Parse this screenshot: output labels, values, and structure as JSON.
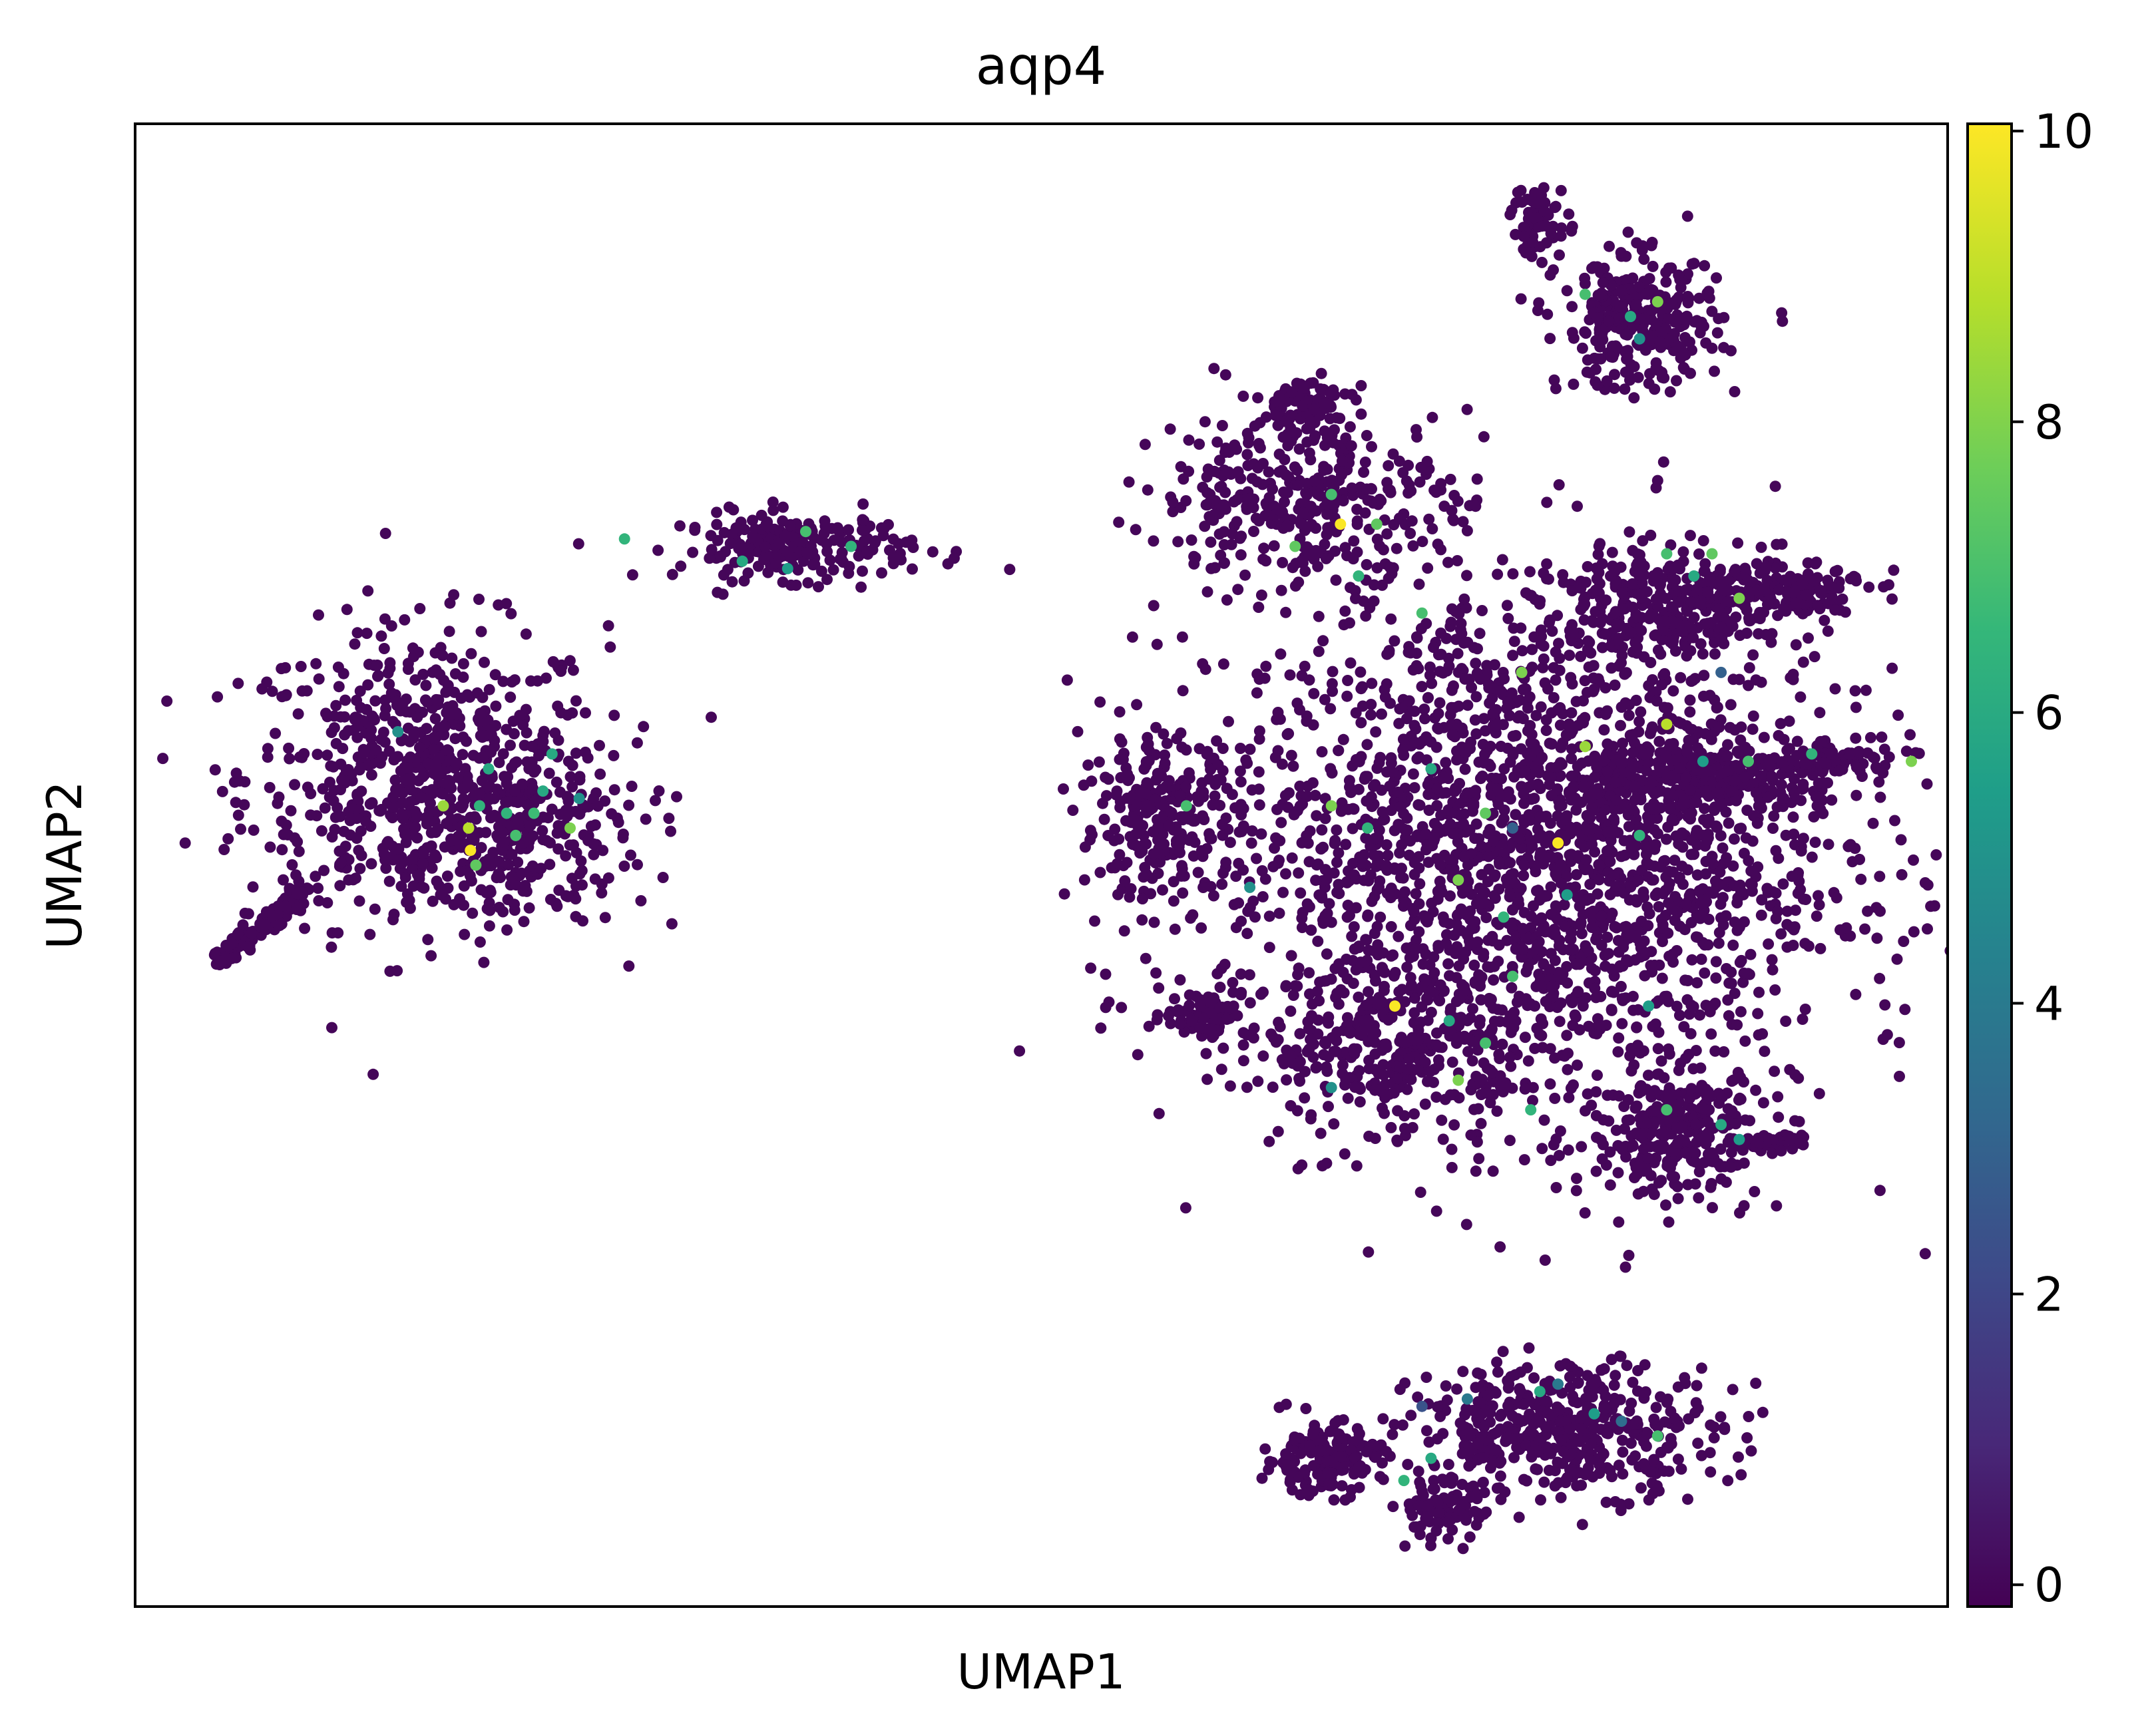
{
  "chart_data": {
    "type": "scatter",
    "title": "aqp4",
    "xlabel": "UMAP1",
    "ylabel": "UMAP2",
    "xlim": [
      0,
      100
    ],
    "ylim": [
      0,
      100
    ],
    "x_ticks_shown": false,
    "y_ticks_shown": false,
    "grid": false,
    "colormap": "viridis",
    "colorbar": {
      "min": -0.15,
      "max": 10.05,
      "ticks": [
        0,
        2,
        4,
        6,
        8,
        10
      ],
      "tick_labels": [
        "0",
        "2",
        "4",
        "6",
        "8",
        "10"
      ]
    },
    "colors": {
      "low": "#440154",
      "mid": "#21918c",
      "high": "#fde725",
      "axes": "#000000"
    },
    "clusters": [
      {
        "name": "C1",
        "shape": "blob",
        "cx": 16,
        "cy": 56,
        "sx": 5.0,
        "sy": 5.0,
        "n": 650
      },
      {
        "name": "C1b",
        "shape": "blob",
        "cx": 20,
        "cy": 52,
        "sx": 4.0,
        "sy": 3.0,
        "n": 250
      },
      {
        "name": "C1-tail",
        "shape": "line",
        "x0": 4.5,
        "y0": 43.5,
        "x1": 9.5,
        "y1": 48.5,
        "w": 0.7,
        "n": 120
      },
      {
        "name": "C2",
        "shape": "blob",
        "cx": 36.5,
        "cy": 71.5,
        "sx": 3.2,
        "sy": 1.1,
        "n": 220
      },
      {
        "name": "C3",
        "shape": "blob",
        "cx": 77,
        "cy": 51,
        "sx": 8.5,
        "sy": 9.0,
        "n": 2400
      },
      {
        "name": "C3-top",
        "shape": "blob",
        "cx": 64.5,
        "cy": 75,
        "sx": 4.0,
        "sy": 2.8,
        "n": 350
      },
      {
        "name": "C3-topsmall",
        "shape": "blob",
        "cx": 64.5,
        "cy": 81,
        "sx": 1.3,
        "sy": 1.0,
        "n": 80
      },
      {
        "name": "C3-left",
        "shape": "blob",
        "cx": 56.5,
        "cy": 53,
        "sx": 2.2,
        "sy": 2.8,
        "n": 260
      },
      {
        "name": "C3-bottomleft",
        "shape": "blob",
        "cx": 59,
        "cy": 40,
        "sx": 1.2,
        "sy": 0.8,
        "n": 70
      },
      {
        "name": "C3-bottom",
        "shape": "blob",
        "cx": 69.5,
        "cy": 37.5,
        "sx": 3.5,
        "sy": 2.5,
        "n": 260
      },
      {
        "name": "C4",
        "shape": "blob",
        "cx": 83,
        "cy": 86.5,
        "sx": 2.2,
        "sy": 2.2,
        "n": 300
      },
      {
        "name": "C4-tip",
        "shape": "blob",
        "cx": 77.5,
        "cy": 93.5,
        "sx": 0.8,
        "sy": 1.3,
        "n": 60
      },
      {
        "name": "C5",
        "shape": "blob",
        "cx": 85,
        "cy": 67.5,
        "sx": 3.8,
        "sy": 1.7,
        "n": 330
      },
      {
        "name": "C5-right",
        "shape": "blob",
        "cx": 91.5,
        "cy": 69,
        "sx": 2.0,
        "sy": 0.9,
        "n": 90
      },
      {
        "name": "C6",
        "shape": "blob",
        "cx": 86.5,
        "cy": 56,
        "sx": 3.4,
        "sy": 1.4,
        "n": 280
      },
      {
        "name": "C6-right",
        "shape": "blob",
        "cx": 94,
        "cy": 57,
        "sx": 1.6,
        "sy": 0.6,
        "n": 60
      },
      {
        "name": "C7",
        "shape": "blob",
        "cx": 85,
        "cy": 32,
        "sx": 2.4,
        "sy": 2.2,
        "n": 270
      },
      {
        "name": "C7-tail",
        "shape": "line",
        "x0": 88,
        "y0": 31,
        "x1": 92,
        "y1": 31.5,
        "w": 0.5,
        "n": 50
      },
      {
        "name": "C8",
        "shape": "blob",
        "cx": 79,
        "cy": 12,
        "sx": 4.2,
        "sy": 2.2,
        "n": 450
      },
      {
        "name": "C8-left",
        "shape": "blob",
        "cx": 65.5,
        "cy": 10,
        "sx": 1.6,
        "sy": 1.2,
        "n": 170
      },
      {
        "name": "C8-bottom",
        "shape": "blob",
        "cx": 72,
        "cy": 6.5,
        "sx": 1.2,
        "sy": 1.0,
        "n": 90
      }
    ],
    "highlighted_points": [
      {
        "x": 20.5,
        "y": 53.5,
        "v": 6.5
      },
      {
        "x": 22.5,
        "y": 55.0,
        "v": 6.0
      },
      {
        "x": 19.0,
        "y": 54.0,
        "v": 6.5
      },
      {
        "x": 24.5,
        "y": 54.5,
        "v": 5.0
      },
      {
        "x": 23.0,
        "y": 57.5,
        "v": 6.0
      },
      {
        "x": 18.5,
        "y": 51.0,
        "v": 10.0
      },
      {
        "x": 18.4,
        "y": 52.5,
        "v": 9.0
      },
      {
        "x": 17.0,
        "y": 54.0,
        "v": 8.5
      },
      {
        "x": 24.0,
        "y": 52.5,
        "v": 8.0
      },
      {
        "x": 21.0,
        "y": 52.0,
        "v": 7.0
      },
      {
        "x": 22.0,
        "y": 53.5,
        "v": 6.8
      },
      {
        "x": 18.8,
        "y": 50.0,
        "v": 7.5
      },
      {
        "x": 14.5,
        "y": 59.0,
        "v": 5.0
      },
      {
        "x": 19.5,
        "y": 56.5,
        "v": 6.0
      },
      {
        "x": 27.0,
        "y": 72.0,
        "v": 6.5
      },
      {
        "x": 37.0,
        "y": 72.5,
        "v": 7.0
      },
      {
        "x": 39.5,
        "y": 71.5,
        "v": 6.5
      },
      {
        "x": 36.0,
        "y": 70.0,
        "v": 5.5
      },
      {
        "x": 33.5,
        "y": 70.5,
        "v": 6.0
      },
      {
        "x": 66.5,
        "y": 73.0,
        "v": 10.0
      },
      {
        "x": 68.5,
        "y": 73.0,
        "v": 7.5
      },
      {
        "x": 66.0,
        "y": 75.0,
        "v": 7.0
      },
      {
        "x": 64.0,
        "y": 71.5,
        "v": 7.5
      },
      {
        "x": 67.5,
        "y": 69.5,
        "v": 6.5
      },
      {
        "x": 71.0,
        "y": 67.0,
        "v": 7.0
      },
      {
        "x": 71.5,
        "y": 56.5,
        "v": 6.0
      },
      {
        "x": 76.5,
        "y": 63.0,
        "v": 8.0
      },
      {
        "x": 74.5,
        "y": 53.5,
        "v": 7.5
      },
      {
        "x": 78.5,
        "y": 51.5,
        "v": 10.0
      },
      {
        "x": 80.0,
        "y": 58.0,
        "v": 8.5
      },
      {
        "x": 75.5,
        "y": 46.5,
        "v": 6.5
      },
      {
        "x": 79.0,
        "y": 48.0,
        "v": 5.5
      },
      {
        "x": 76.0,
        "y": 42.5,
        "v": 7.0
      },
      {
        "x": 69.5,
        "y": 40.5,
        "v": 10.0
      },
      {
        "x": 72.5,
        "y": 39.5,
        "v": 6.0
      },
      {
        "x": 74.5,
        "y": 38.0,
        "v": 7.0
      },
      {
        "x": 73.0,
        "y": 35.5,
        "v": 8.0
      },
      {
        "x": 77.0,
        "y": 33.5,
        "v": 6.5
      },
      {
        "x": 66.0,
        "y": 35.0,
        "v": 5.0
      },
      {
        "x": 61.5,
        "y": 48.5,
        "v": 5.0
      },
      {
        "x": 58.0,
        "y": 54.0,
        "v": 7.0
      },
      {
        "x": 66.0,
        "y": 54.0,
        "v": 8.0
      },
      {
        "x": 68.0,
        "y": 52.5,
        "v": 6.5
      },
      {
        "x": 73.0,
        "y": 49.0,
        "v": 8.0
      },
      {
        "x": 76.0,
        "y": 52.5,
        "v": 3.0
      },
      {
        "x": 83.0,
        "y": 52.0,
        "v": 6.5
      },
      {
        "x": 83.5,
        "y": 40.5,
        "v": 5.5
      },
      {
        "x": 84.5,
        "y": 71.0,
        "v": 7.0
      },
      {
        "x": 87.0,
        "y": 71.0,
        "v": 7.5
      },
      {
        "x": 88.5,
        "y": 68.0,
        "v": 8.0
      },
      {
        "x": 86.0,
        "y": 69.5,
        "v": 6.0
      },
      {
        "x": 84.5,
        "y": 59.5,
        "v": 9.0
      },
      {
        "x": 89.0,
        "y": 57.0,
        "v": 7.0
      },
      {
        "x": 92.5,
        "y": 57.5,
        "v": 6.5
      },
      {
        "x": 86.5,
        "y": 57.0,
        "v": 5.5
      },
      {
        "x": 98.0,
        "y": 57.0,
        "v": 8.0
      },
      {
        "x": 88.5,
        "y": 31.5,
        "v": 5.5
      },
      {
        "x": 87.5,
        "y": 32.5,
        "v": 6.0
      },
      {
        "x": 84.5,
        "y": 33.5,
        "v": 7.0
      },
      {
        "x": 80.0,
        "y": 88.5,
        "v": 7.0
      },
      {
        "x": 82.5,
        "y": 87.0,
        "v": 6.0
      },
      {
        "x": 83.0,
        "y": 85.5,
        "v": 5.0
      },
      {
        "x": 84.0,
        "y": 88.0,
        "v": 8.0
      },
      {
        "x": 77.5,
        "y": 14.5,
        "v": 6.0
      },
      {
        "x": 78.5,
        "y": 15.0,
        "v": 4.0
      },
      {
        "x": 80.5,
        "y": 13.0,
        "v": 5.5
      },
      {
        "x": 84.0,
        "y": 11.5,
        "v": 7.0
      },
      {
        "x": 82.0,
        "y": 12.5,
        "v": 3.5
      },
      {
        "x": 71.5,
        "y": 10.0,
        "v": 6.0
      },
      {
        "x": 71.0,
        "y": 13.5,
        "v": 2.5
      },
      {
        "x": 73.5,
        "y": 14.0,
        "v": 4.0
      },
      {
        "x": 70.0,
        "y": 8.5,
        "v": 6.5
      },
      {
        "x": 87.5,
        "y": 63.0,
        "v": 3.0
      }
    ]
  }
}
